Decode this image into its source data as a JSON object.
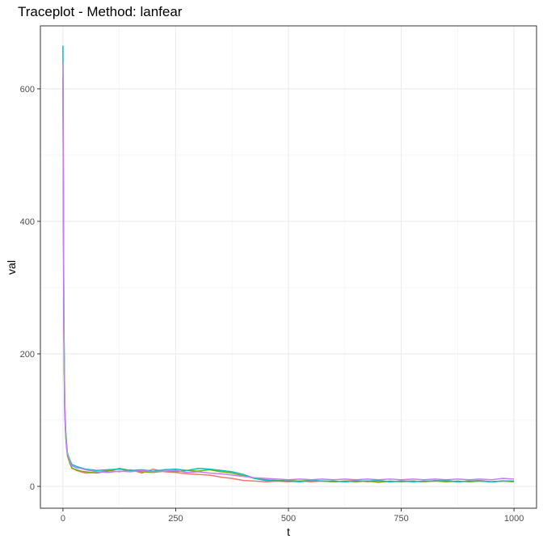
{
  "chart_data": {
    "type": "line",
    "title": "Traceplot - Method: lanfear",
    "xlabel": "t",
    "ylabel": "val",
    "xlim": [
      -50,
      1050
    ],
    "ylim": [
      -33,
      695
    ],
    "xticks": [
      0,
      250,
      500,
      750,
      1000
    ],
    "yticks": [
      0,
      200,
      400,
      600
    ],
    "grid": true,
    "legend": "none",
    "x": [
      0,
      2,
      4,
      6,
      8,
      10,
      15,
      20,
      30,
      40,
      50,
      75,
      100,
      125,
      150,
      175,
      200,
      225,
      250,
      275,
      300,
      325,
      350,
      375,
      400,
      425,
      450,
      475,
      500,
      525,
      550,
      575,
      600,
      625,
      650,
      675,
      700,
      725,
      750,
      775,
      800,
      825,
      850,
      875,
      900,
      925,
      950,
      975,
      1000
    ],
    "series": [
      {
        "color": "#F8766D",
        "values": [
          620,
          240,
          115,
          78,
          60,
          48,
          36,
          28,
          24,
          22,
          20,
          21,
          24,
          22,
          25,
          20,
          26,
          22,
          21,
          19,
          18,
          17,
          14,
          12,
          9,
          8,
          7,
          8,
          7,
          8,
          7,
          8,
          7,
          8,
          9,
          7,
          8,
          7,
          8,
          8,
          7,
          9,
          8,
          7,
          8,
          9,
          7,
          8,
          8
        ]
      },
      {
        "color": "#7CAE00",
        "values": [
          610,
          230,
          110,
          75,
          58,
          46,
          35,
          27,
          25,
          23,
          22,
          20,
          23,
          27,
          24,
          22,
          21,
          23,
          22,
          24,
          23,
          25,
          22,
          20,
          16,
          12,
          10,
          9,
          9,
          8,
          9,
          8,
          7,
          8,
          7,
          8,
          6,
          8,
          7,
          8,
          7,
          8,
          7,
          8,
          7,
          8,
          7,
          8,
          7
        ]
      },
      {
        "color": "#00BFC4",
        "values": [
          665,
          260,
          125,
          85,
          65,
          50,
          40,
          33,
          30,
          28,
          26,
          24,
          25,
          26,
          24,
          25,
          23,
          25,
          26,
          24,
          27,
          26,
          24,
          22,
          18,
          12,
          9,
          8,
          8,
          7,
          9,
          8,
          8,
          7,
          8,
          8,
          9,
          7,
          8,
          7,
          8,
          8,
          9,
          7,
          8,
          8,
          7,
          8,
          8
        ]
      },
      {
        "color": "#C77CFF",
        "values": [
          640,
          250,
          120,
          80,
          62,
          49,
          38,
          31,
          28,
          27,
          25,
          22,
          21,
          23,
          22,
          24,
          22,
          23,
          24,
          21,
          22,
          20,
          19,
          17,
          15,
          13,
          12,
          11,
          10,
          11,
          10,
          11,
          10,
          11,
          10,
          11,
          10,
          11,
          10,
          11,
          10,
          11,
          10,
          11,
          10,
          11,
          10,
          12,
          11
        ]
      }
    ]
  }
}
